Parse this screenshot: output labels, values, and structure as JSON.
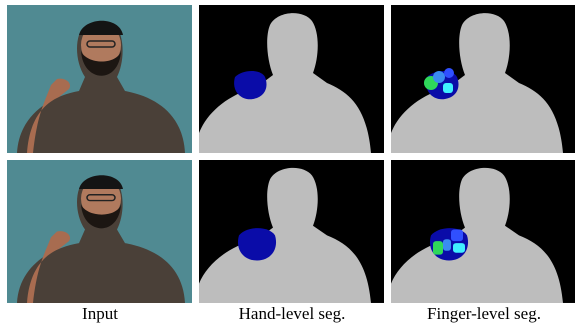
{
  "figure": {
    "columns": [
      {
        "caption": "Input"
      },
      {
        "caption": "Hand-level seg."
      },
      {
        "caption": "Finger-level seg."
      }
    ]
  }
}
